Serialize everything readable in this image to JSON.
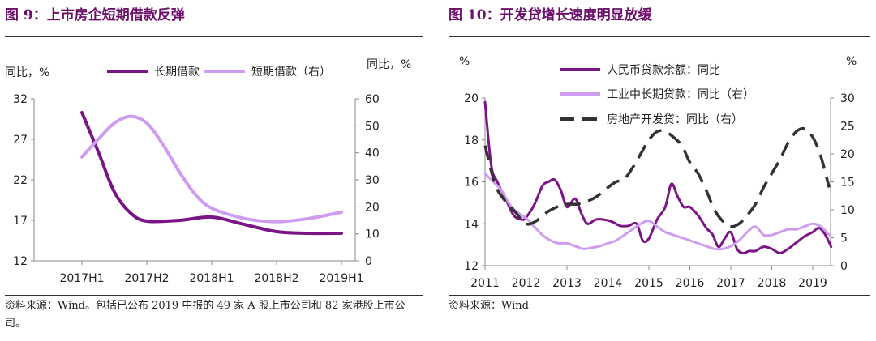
{
  "left_panel": {
    "figure_title": "图 9：上市房企短期借款反弹",
    "source": "资料来源：Wind。包括已公布 2019 中报的 49 家 A 股上市公司和 82 家港股上市公司。"
  },
  "right_panel": {
    "figure_title": "图 10：开发贷增长速度明显放缓",
    "source": "资料来源：Wind"
  },
  "colors": {
    "title": "#6b0f6b",
    "dark_purple": "#7b1585",
    "light_purple": "#cf9cf0",
    "dashed": "#333333"
  },
  "chart_data": [
    {
      "type": "line",
      "title": "",
      "categories": [
        "2017H1",
        "2017H2",
        "2018H1",
        "2018H2",
        "2019H1"
      ],
      "y_left_label": "同比，%",
      "y_right_label": "同比，%",
      "ylim_left": [
        12,
        32
      ],
      "ylim_right": [
        0,
        60
      ],
      "yticks_left": [
        "12",
        "17",
        "22",
        "27",
        "32"
      ],
      "yticks_right": [
        "0",
        "10",
        "20",
        "30",
        "40",
        "50",
        "60"
      ],
      "legend_position": "top",
      "grid": false,
      "series": [
        {
          "name": "长期借款",
          "axis": "left",
          "color": "#7b1585",
          "x": [
            0,
            0.25,
            0.5,
            0.75,
            1,
            1.5,
            2,
            2.5,
            3,
            3.5,
            4
          ],
          "values": [
            30.3,
            25.5,
            20.5,
            17.9,
            16.9,
            17.0,
            17.4,
            16.5,
            15.6,
            15.4,
            15.4
          ]
        },
        {
          "name": "短期借款（右）",
          "axis": "right",
          "color": "#cf9cf0",
          "x": [
            0,
            0.25,
            0.5,
            0.75,
            1,
            1.25,
            1.5,
            1.75,
            2,
            2.5,
            3,
            3.5,
            4
          ],
          "values": [
            38.5,
            45,
            51,
            53.5,
            51,
            43,
            33,
            24.5,
            19.5,
            15.7,
            14.5,
            15.7,
            18
          ]
        }
      ]
    },
    {
      "type": "line",
      "title": "",
      "x_ticks": [
        "2011",
        "2012",
        "2013",
        "2014",
        "2015",
        "2016",
        "2017",
        "2018",
        "2019"
      ],
      "y_left_label": "%",
      "y_right_label": "%",
      "ylim_left": [
        12,
        20
      ],
      "ylim_right": [
        0,
        30
      ],
      "yticks_left": [
        "12",
        "14",
        "16",
        "18",
        "20"
      ],
      "yticks_right": [
        "0",
        "5",
        "10",
        "15",
        "20",
        "25",
        "30"
      ],
      "legend_position": "top",
      "grid": false,
      "series": [
        {
          "name": "人民币贷款余额：同比",
          "axis": "left",
          "color": "#7b1585",
          "dash": false,
          "x": [
            2011,
            2011.15,
            2011.3,
            2011.5,
            2011.7,
            2011.9,
            2012,
            2012.2,
            2012.4,
            2012.55,
            2012.7,
            2012.85,
            2013,
            2013.2,
            2013.35,
            2013.5,
            2013.7,
            2013.9,
            2014.1,
            2014.3,
            2014.5,
            2014.7,
            2014.85,
            2015,
            2015.2,
            2015.4,
            2015.55,
            2015.7,
            2015.85,
            2016,
            2016.2,
            2016.4,
            2016.55,
            2016.7,
            2016.85,
            2017,
            2017.15,
            2017.3,
            2017.45,
            2017.6,
            2017.8,
            2018,
            2018.2,
            2018.4,
            2018.6,
            2018.8,
            2019,
            2019.15,
            2019.3,
            2019.45
          ],
          "values": [
            19.8,
            16.8,
            16.0,
            15.2,
            14.4,
            14.2,
            14.3,
            14.9,
            15.8,
            16.0,
            16.1,
            15.6,
            14.8,
            15.2,
            14.5,
            14.0,
            14.2,
            14.2,
            14.1,
            13.9,
            13.9,
            14.0,
            13.2,
            13.3,
            14.2,
            14.8,
            15.9,
            15.3,
            14.8,
            14.8,
            14.4,
            13.8,
            13.5,
            12.9,
            13.3,
            13.6,
            12.8,
            12.6,
            12.7,
            12.7,
            12.9,
            12.8,
            12.6,
            12.8,
            13.1,
            13.4,
            13.6,
            13.8,
            13.5,
            12.9
          ]
        },
        {
          "name": "工业中长期贷款：同比（右）",
          "axis": "right",
          "color": "#cf9cf0",
          "dash": false,
          "x": [
            2011,
            2011.2,
            2011.4,
            2011.6,
            2011.8,
            2012,
            2012.2,
            2012.4,
            2012.6,
            2012.8,
            2013,
            2013.2,
            2013.4,
            2013.6,
            2013.8,
            2014,
            2014.2,
            2014.4,
            2014.6,
            2014.8,
            2015,
            2015.2,
            2015.4,
            2015.6,
            2015.8,
            2016,
            2016.2,
            2016.4,
            2016.6,
            2016.8,
            2017,
            2017.2,
            2017.4,
            2017.6,
            2017.8,
            2018,
            2018.2,
            2018.4,
            2018.6,
            2018.8,
            2019,
            2019.2,
            2019.4
          ],
          "values": [
            16.5,
            15,
            13.5,
            11,
            9.5,
            8.5,
            7,
            5.5,
            4.5,
            4,
            4,
            3.5,
            3,
            3.2,
            3.5,
            4,
            4.5,
            5.5,
            6.5,
            7.5,
            8,
            7,
            6,
            5.5,
            5,
            4.5,
            4,
            3.5,
            3,
            3,
            3.5,
            4.5,
            6,
            7,
            5.5,
            5.5,
            6,
            6.5,
            6.5,
            7,
            7.5,
            7,
            5.5
          ]
        },
        {
          "name": "房地产开发贷：同比（右）",
          "axis": "right",
          "color": "#333333",
          "dash": true,
          "x": [
            2011,
            2011.25,
            2011.5,
            2011.75,
            2012,
            2012.25,
            2012.5,
            2012.75,
            2013,
            2013.25,
            2013.5,
            2013.75,
            2014,
            2014.2,
            2014.4,
            2014.6,
            2014.8,
            2015,
            2015.2,
            2015.4,
            2015.6,
            2015.8,
            2016,
            2016.2,
            2016.4,
            2016.6,
            2016.8,
            2017,
            2017.2,
            2017.4,
            2017.6,
            2017.8,
            2018,
            2018.2,
            2018.4,
            2018.6,
            2018.8,
            2019,
            2019.2,
            2019.4
          ],
          "values": [
            21.5,
            14.5,
            11.5,
            9.5,
            7.5,
            8,
            9.5,
            10.5,
            11,
            11,
            11.5,
            12.5,
            14,
            15,
            15.5,
            17.5,
            20,
            22.5,
            24,
            24,
            23,
            21.5,
            18.5,
            16.5,
            13.5,
            10,
            8,
            7,
            7.5,
            9,
            11,
            14,
            16.5,
            19,
            22,
            24,
            24.5,
            23,
            19.5,
            14
          ]
        }
      ]
    }
  ]
}
